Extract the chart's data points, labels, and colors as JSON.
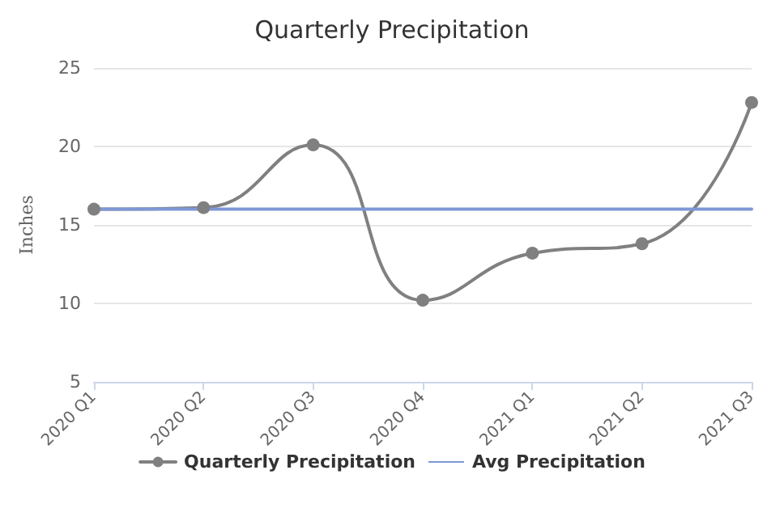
{
  "chart_data": {
    "type": "line",
    "title": "Quarterly Precipitation",
    "ylabel": "Inches",
    "categories": [
      "2020 Q1",
      "2020 Q2",
      "2020 Q3",
      "2020 Q4",
      "2021 Q1",
      "2021 Q2",
      "2021 Q3"
    ],
    "series": [
      {
        "name": "Quarterly Precipitation",
        "color": "#808080",
        "values": [
          16.0,
          16.1,
          20.1,
          10.2,
          13.2,
          13.8,
          22.8
        ]
      },
      {
        "name": "Avg Precipitation",
        "color": "#7f97d6",
        "marker": "none",
        "values": [
          16.0,
          16.0,
          16.0,
          16.0,
          16.0,
          16.0,
          16.0
        ]
      }
    ],
    "ylim": [
      5,
      25
    ],
    "yticks": [
      5,
      10,
      15,
      20,
      25
    ],
    "grid": "y",
    "legend": "bottom",
    "marker": "circle",
    "line_style": "solid"
  }
}
